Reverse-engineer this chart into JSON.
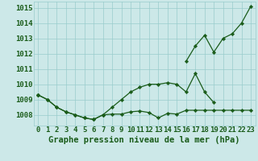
{
  "title": "Graphe pression niveau de la mer (hPa)",
  "hours": [
    0,
    1,
    2,
    3,
    4,
    5,
    6,
    7,
    8,
    9,
    10,
    11,
    12,
    13,
    14,
    15,
    16,
    17,
    18,
    19,
    20,
    21,
    22,
    23
  ],
  "line_bottom": [
    1009.3,
    1009.0,
    1008.5,
    1008.2,
    1008.0,
    1007.8,
    1007.7,
    1008.0,
    1008.05,
    1008.05,
    1008.2,
    1008.25,
    1008.15,
    1007.8,
    1008.1,
    1008.05,
    1008.3,
    1008.3,
    1008.3,
    1008.3,
    1008.3,
    1008.3,
    1008.3,
    1008.3
  ],
  "line_mid": [
    1009.3,
    1009.0,
    1008.5,
    1008.2,
    1008.0,
    1007.8,
    1007.7,
    1008.0,
    1008.5,
    1009.0,
    1009.5,
    1009.8,
    1010.0,
    1010.0,
    1010.1,
    1010.0,
    1009.5,
    1010.7,
    1009.5,
    1008.8,
    null,
    null,
    null,
    null
  ],
  "line_top": [
    1009.3,
    null,
    null,
    null,
    null,
    null,
    null,
    null,
    null,
    null,
    null,
    null,
    null,
    null,
    null,
    null,
    1011.5,
    1012.5,
    1013.2,
    1012.1,
    1013.0,
    1013.3,
    1014.0,
    1015.1
  ],
  "ylim": [
    1007.3,
    1015.4
  ],
  "yticks": [
    1008,
    1009,
    1010,
    1011,
    1012,
    1013,
    1014,
    1015
  ],
  "bg_color": "#cce8e8",
  "grid_color": "#99cccc",
  "line_color": "#1a5c1a",
  "title_fontsize": 7.5,
  "tick_fontsize": 6.5
}
